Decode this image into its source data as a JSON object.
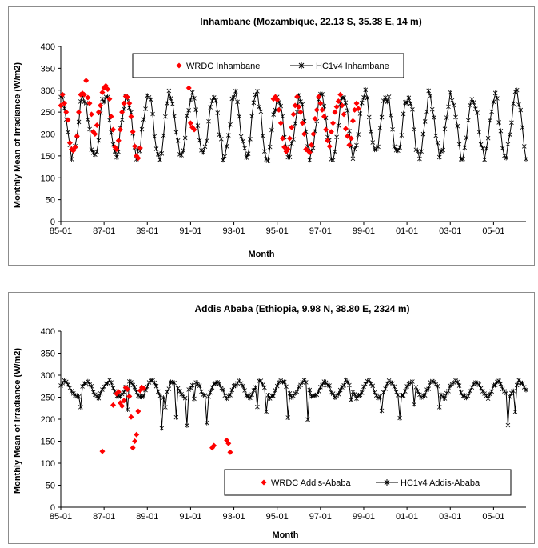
{
  "chart_data": [
    {
      "type": "line",
      "title": "Inhambane (Mozambique, 22.13 S, 35.38 E, 14 m)",
      "xlabel": "Month",
      "ylabel": "Monthly Mean of Irradiance (W/m2)",
      "ylim": [
        0,
        400
      ],
      "yticks": [
        "0",
        "50",
        "100",
        "150",
        "200",
        "250",
        "300",
        "350",
        "400"
      ],
      "xlim": [
        1985.0,
        2006.5
      ],
      "xticks": [
        {
          "value": 1985,
          "label": "85-01"
        },
        {
          "value": 1987,
          "label": "87-01"
        },
        {
          "value": 1989,
          "label": "89-01"
        },
        {
          "value": 1991,
          "label": "91-01"
        },
        {
          "value": 1993,
          "label": "93-01"
        },
        {
          "value": 1995,
          "label": "95-01"
        },
        {
          "value": 1997,
          "label": "97-01"
        },
        {
          "value": 1999,
          "label": "99-01"
        },
        {
          "value": 2001,
          "label": "01-01"
        },
        {
          "value": 2003,
          "label": "03-01"
        },
        {
          "value": 2005,
          "label": "05-01"
        }
      ],
      "legend_position": "top",
      "series": [
        {
          "name": "WRDC Inhambane",
          "kind": "scatter",
          "color": "#ff0000",
          "points": [
            [
              1985.0,
              265
            ],
            [
              1985.08,
              290
            ],
            [
              1985.17,
              270
            ],
            [
              1985.25,
              250
            ],
            [
              1985.33,
              232
            ],
            [
              1985.42,
              180
            ],
            [
              1985.5,
              165
            ],
            [
              1985.58,
              162
            ],
            [
              1985.67,
              170
            ],
            [
              1985.75,
              195
            ],
            [
              1985.83,
              250
            ],
            [
              1985.92,
              290
            ],
            [
              1986.0,
              293
            ],
            [
              1986.08,
              290
            ],
            [
              1986.17,
              322
            ],
            [
              1986.25,
              283
            ],
            [
              1986.33,
              270
            ],
            [
              1986.42,
              245
            ],
            [
              1986.5,
              205
            ],
            [
              1986.58,
              200
            ],
            [
              1986.67,
              220
            ],
            [
              1986.75,
              250
            ],
            [
              1986.83,
              265
            ],
            [
              1986.92,
              295
            ],
            [
              1987.0,
              305
            ],
            [
              1987.08,
              310
            ],
            [
              1987.17,
              302
            ],
            [
              1987.25,
              280
            ],
            [
              1987.33,
              240
            ],
            [
              1987.42,
              210
            ],
            [
              1987.5,
              170
            ],
            [
              1987.58,
              165
            ],
            [
              1987.67,
              185
            ],
            [
              1987.75,
              210
            ],
            [
              1987.83,
              250
            ],
            [
              1987.92,
              270
            ],
            [
              1988.0,
              286
            ],
            [
              1988.08,
              284
            ],
            [
              1988.17,
              270
            ],
            [
              1988.25,
              240
            ],
            [
              1988.33,
              205
            ],
            [
              1988.42,
              172
            ],
            [
              1988.5,
              150
            ],
            [
              1988.58,
              145
            ],
            [
              1988.67,
              168
            ],
            [
              1990.92,
              305
            ],
            [
              1991.0,
              225
            ],
            [
              1991.08,
              215
            ],
            [
              1991.17,
              210
            ],
            [
              1994.83,
              280
            ],
            [
              1994.92,
              285
            ],
            [
              1995.0,
              278
            ],
            [
              1995.08,
              255
            ],
            [
              1995.17,
              225
            ],
            [
              1995.25,
              190
            ],
            [
              1995.33,
              170
            ],
            [
              1995.42,
              160
            ],
            [
              1995.5,
              165
            ],
            [
              1995.58,
              190
            ],
            [
              1995.67,
              215
            ],
            [
              1995.75,
              245
            ],
            [
              1995.83,
              265
            ],
            [
              1995.92,
              285
            ],
            [
              1996.0,
              262
            ],
            [
              1996.08,
              250
            ],
            [
              1996.17,
              225
            ],
            [
              1996.25,
              200
            ],
            [
              1996.33,
              165
            ],
            [
              1996.42,
              162
            ],
            [
              1996.5,
              158
            ],
            [
              1996.58,
              175
            ],
            [
              1996.67,
              200
            ],
            [
              1996.75,
              235
            ],
            [
              1996.83,
              255
            ],
            [
              1996.92,
              285
            ],
            [
              1997.0,
              270
            ],
            [
              1997.08,
              255
            ],
            [
              1997.17,
              240
            ],
            [
              1997.25,
              210
            ],
            [
              1997.33,
              185
            ],
            [
              1997.42,
              172
            ],
            [
              1997.5,
              205
            ],
            [
              1997.58,
              225
            ],
            [
              1997.67,
              250
            ],
            [
              1997.75,
              262
            ],
            [
              1997.83,
              275
            ],
            [
              1997.92,
              290
            ],
            [
              1998.0,
              265
            ],
            [
              1998.08,
              245
            ],
            [
              1998.17,
              212
            ],
            [
              1998.25,
              195
            ],
            [
              1998.33,
              175
            ],
            [
              1998.42,
              190
            ],
            [
              1998.5,
              230
            ],
            [
              1998.58,
              255
            ],
            [
              1998.67,
              270
            ],
            [
              1998.75,
              258
            ]
          ]
        },
        {
          "name": "HC1v4 Inhambane",
          "kind": "line-markers",
          "color": "#000000",
          "center": 220,
          "amplitude": 68,
          "peak_month": 0.6,
          "start": 1985.0,
          "end": 2006.5
        }
      ]
    },
    {
      "type": "line",
      "title": "Addis Ababa (Ethiopia, 9.98 N, 38.80 E, 2324 m)",
      "xlabel": "Month",
      "ylabel": "Monthly Mean of Irradiance (W/m2)",
      "ylim": [
        0,
        400
      ],
      "yticks": [
        "0",
        "50",
        "100",
        "150",
        "200",
        "250",
        "300",
        "350",
        "400"
      ],
      "xlim": [
        1985.0,
        2006.5
      ],
      "xticks": [
        {
          "value": 1985,
          "label": "85-01"
        },
        {
          "value": 1987,
          "label": "87-01"
        },
        {
          "value": 1989,
          "label": "89-01"
        },
        {
          "value": 1991,
          "label": "91-01"
        },
        {
          "value": 1993,
          "label": "93-01"
        },
        {
          "value": 1995,
          "label": "95-01"
        },
        {
          "value": 1997,
          "label": "97-01"
        },
        {
          "value": 1999,
          "label": "99-01"
        },
        {
          "value": 2001,
          "label": "01-01"
        },
        {
          "value": 2003,
          "label": "03-01"
        },
        {
          "value": 2005,
          "label": "05-01"
        }
      ],
      "legend_position": "bottom-right",
      "series": [
        {
          "name": "WRDC Addis-Ababa",
          "kind": "scatter",
          "color": "#ff0000",
          "points": [
            [
              1986.92,
              127
            ],
            [
              1987.42,
              232
            ],
            [
              1987.58,
              258
            ],
            [
              1987.67,
              262
            ],
            [
              1987.75,
              237
            ],
            [
              1987.83,
              230
            ],
            [
              1987.92,
              242
            ],
            [
              1988.0,
              272
            ],
            [
              1988.08,
              268
            ],
            [
              1988.17,
              252
            ],
            [
              1988.25,
              205
            ],
            [
              1988.33,
              135
            ],
            [
              1988.42,
              150
            ],
            [
              1988.5,
              165
            ],
            [
              1988.58,
              218
            ],
            [
              1988.67,
              265
            ],
            [
              1988.75,
              272
            ],
            [
              1988.83,
              270
            ],
            [
              1992.0,
              135
            ],
            [
              1992.08,
              140
            ],
            [
              1992.67,
              152
            ],
            [
              1992.75,
              145
            ],
            [
              1992.83,
              125
            ]
          ]
        },
        {
          "name": "HC1v4 Addis-Ababa",
          "kind": "line-markers",
          "color": "#000000",
          "center": 268,
          "amplitude": 18,
          "peak_month": 2.5,
          "start": 1985.0,
          "end": 2006.5
        }
      ]
    }
  ]
}
